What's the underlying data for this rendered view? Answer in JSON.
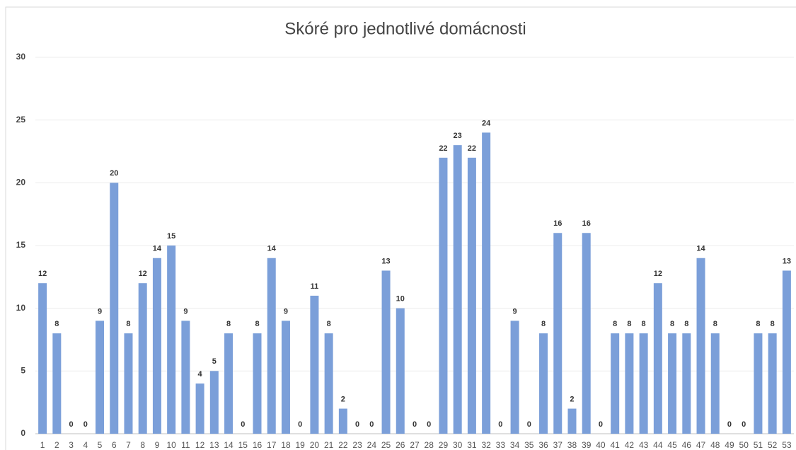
{
  "chart_data": {
    "type": "bar",
    "title": "Skóré pro jednotlivé domácnosti",
    "categories": [
      "1",
      "2",
      "3",
      "4",
      "5",
      "6",
      "7",
      "8",
      "9",
      "10",
      "11",
      "12",
      "13",
      "14",
      "15",
      "16",
      "17",
      "18",
      "19",
      "20",
      "21",
      "22",
      "23",
      "24",
      "25",
      "26",
      "27",
      "28",
      "29",
      "30",
      "31",
      "32",
      "33",
      "34",
      "35",
      "36",
      "37",
      "38",
      "39",
      "40",
      "41",
      "42",
      "43",
      "44",
      "45",
      "46",
      "47",
      "48",
      "49",
      "50",
      "51",
      "52",
      "53"
    ],
    "values": [
      12,
      8,
      0,
      0,
      9,
      20,
      8,
      12,
      14,
      15,
      9,
      4,
      5,
      8,
      0,
      8,
      14,
      9,
      0,
      11,
      8,
      2,
      0,
      0,
      13,
      10,
      0,
      0,
      22,
      23,
      22,
      24,
      0,
      9,
      0,
      8,
      16,
      2,
      16,
      0,
      8,
      8,
      8,
      12,
      8,
      8,
      14,
      8,
      0,
      0,
      8,
      8,
      13
    ],
    "color": "#7b9fd9",
    "ylim": [
      0,
      30
    ],
    "yticks": [
      0,
      5,
      10,
      15,
      20,
      25,
      30
    ],
    "grid": true
  }
}
